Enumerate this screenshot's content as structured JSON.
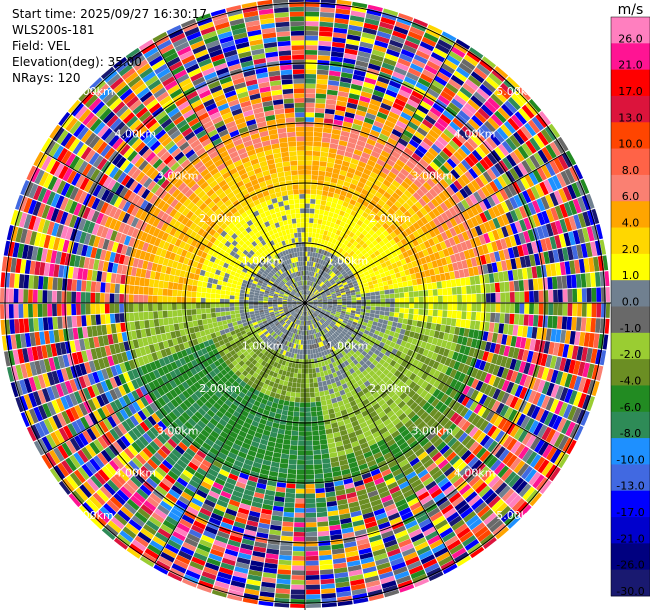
{
  "header": {
    "start_time": "Start time: 2025/09/27 16:30:17",
    "instrument": "WLS200s-181",
    "field": "Field: VEL",
    "elevation": "Elevation(deg): 35.00",
    "nrays": "NRays: 120"
  },
  "chart_data": {
    "type": "heatmap",
    "projection": "polar-ppi",
    "field": "VEL",
    "units": "m/s",
    "n_rays": 120,
    "elevation_deg": 35.0,
    "max_range_km": 5.0,
    "range_rings_km": [
      1,
      2,
      3,
      4,
      5
    ],
    "ring_labels": [
      "1.00km",
      "2.00km",
      "3.00km",
      "4.00km",
      "5.00km"
    ],
    "colorbar": {
      "unit_label": "m/s",
      "ticks": [
        "26.0",
        "21.0",
        "17.0",
        "13.0",
        "10.0",
        "8.0",
        "6.0",
        "4.0",
        "2.0",
        "1.0",
        "0.0",
        "-1.0",
        "-2.0",
        "-4.0",
        "-6.0",
        "-8.0",
        "-10.0",
        "-13.0",
        "-17.0",
        "-21.0",
        "-26.0",
        "-30.0"
      ],
      "bounds": [
        30,
        26,
        21,
        17,
        13,
        10,
        8,
        6,
        4,
        2,
        1,
        0,
        -1,
        -2,
        -4,
        -6,
        -8,
        -10,
        -13,
        -17,
        -21,
        -26,
        -30
      ],
      "colors": [
        "#ff7fbf",
        "#ff1493",
        "#ff0000",
        "#dc143c",
        "#ff4500",
        "#ff6347",
        "#fa8072",
        "#ffa500",
        "#ffd700",
        "#ffff00",
        "#708090",
        "#696969",
        "#9acd32",
        "#6b8e23",
        "#228b22",
        "#2e8b57",
        "#1e90ff",
        "#4169e1",
        "#0000ff",
        "#0000cd",
        "#000080",
        "#191970"
      ]
    },
    "sectors": [
      {
        "from_deg": 0,
        "to_deg": 90,
        "near_km": 0.9,
        "mid": "yellow/orange",
        "far": "orange/salmon"
      },
      {
        "from_deg": 90,
        "to_deg": 180,
        "near_km": 0.9,
        "mid": "yellowgreen",
        "far": "green"
      },
      {
        "from_deg": 180,
        "to_deg": 270,
        "near_km": 0.9,
        "mid": "green",
        "far": "green/blue"
      },
      {
        "from_deg": 270,
        "to_deg": 360,
        "near_km": 0.9,
        "mid": "yellow",
        "far": "orange"
      }
    ]
  }
}
